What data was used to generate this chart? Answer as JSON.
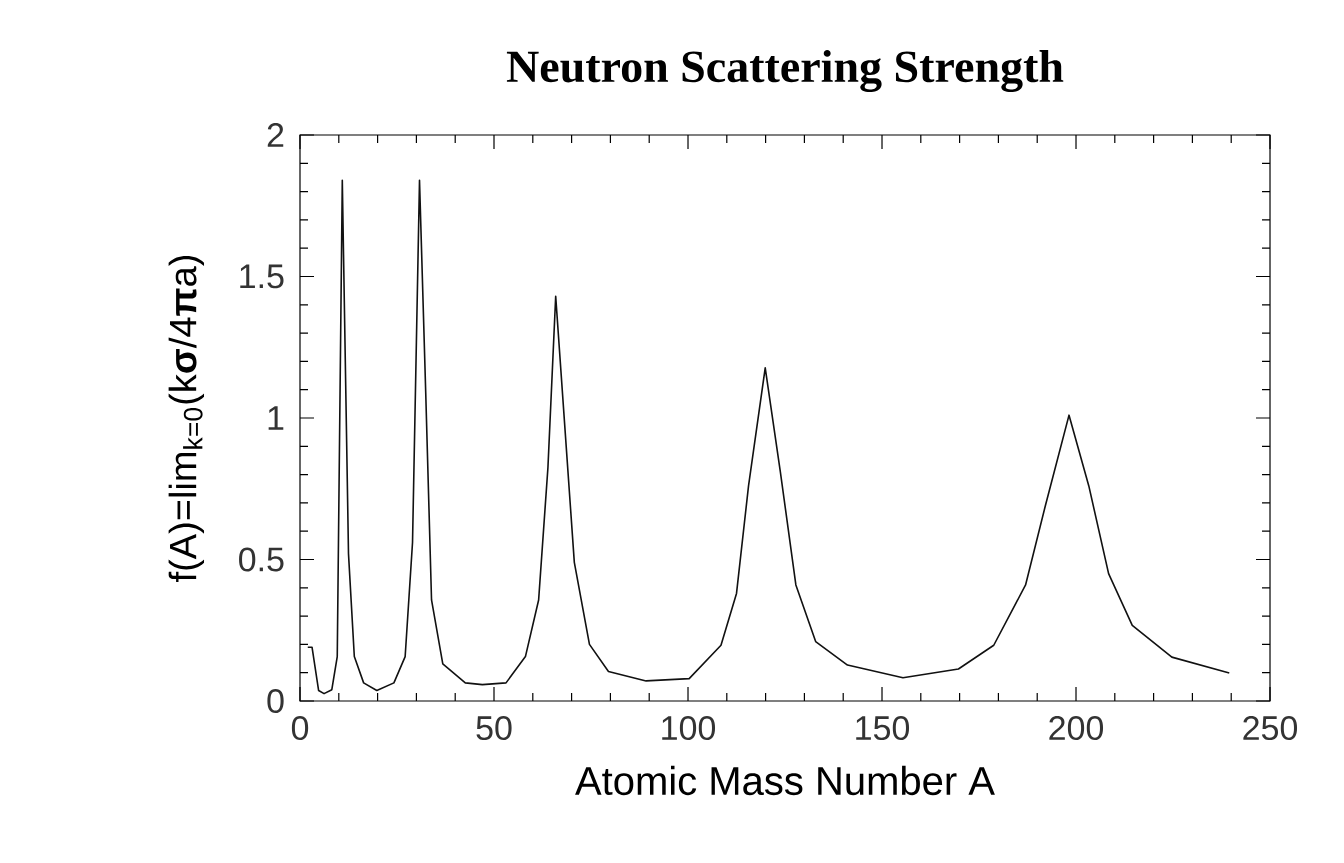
{
  "chart_data": {
    "type": "line",
    "title": "Neutron Scattering Strength",
    "xlabel": "Atomic Mass Number A",
    "ylabel": "f(A)=lim$_{k=0}$(k**σ**/4**π**a)",
    "x": [
      2.0,
      3.1,
      4.8,
      6.2,
      8.2,
      9.6,
      10.9,
      12.5,
      14.0,
      16.4,
      19.8,
      24.2,
      27.1,
      29.0,
      30.8,
      32.4,
      33.9,
      36.8,
      42.6,
      47.0,
      53.1,
      58.1,
      61.5,
      63.9,
      65.9,
      68.3,
      70.7,
      74.6,
      79.5,
      89.2,
      100.3,
      108.5,
      112.5,
      115.6,
      119.9,
      123.8,
      127.8,
      132.9,
      141.1,
      155.4,
      169.7,
      178.8,
      187.0,
      192.1,
      198.2,
      203.3,
      208.4,
      214.5,
      224.7,
      239.5
    ],
    "series": [
      {
        "color": "#111111",
        "values": [
          0.19,
          0.19,
          0.037,
          0.026,
          0.04,
          0.157,
          1.84,
          0.52,
          0.157,
          0.064,
          0.037,
          0.064,
          0.157,
          0.56,
          1.84,
          1.09,
          0.357,
          0.131,
          0.064,
          0.058,
          0.064,
          0.157,
          0.357,
          0.825,
          1.43,
          0.96,
          0.49,
          0.2,
          0.104,
          0.071,
          0.079,
          0.197,
          0.38,
          0.76,
          1.177,
          0.81,
          0.41,
          0.21,
          0.127,
          0.082,
          0.113,
          0.197,
          0.41,
          0.69,
          1.01,
          0.76,
          0.45,
          0.267,
          0.155,
          0.099
        ]
      }
    ],
    "xlim": [
      0,
      250
    ],
    "ylim": [
      0,
      2
    ],
    "xticks": [
      0,
      50,
      100,
      150,
      200,
      250
    ],
    "yticks": [
      0,
      0.5,
      1,
      1.5,
      2
    ],
    "marker": "none"
  }
}
